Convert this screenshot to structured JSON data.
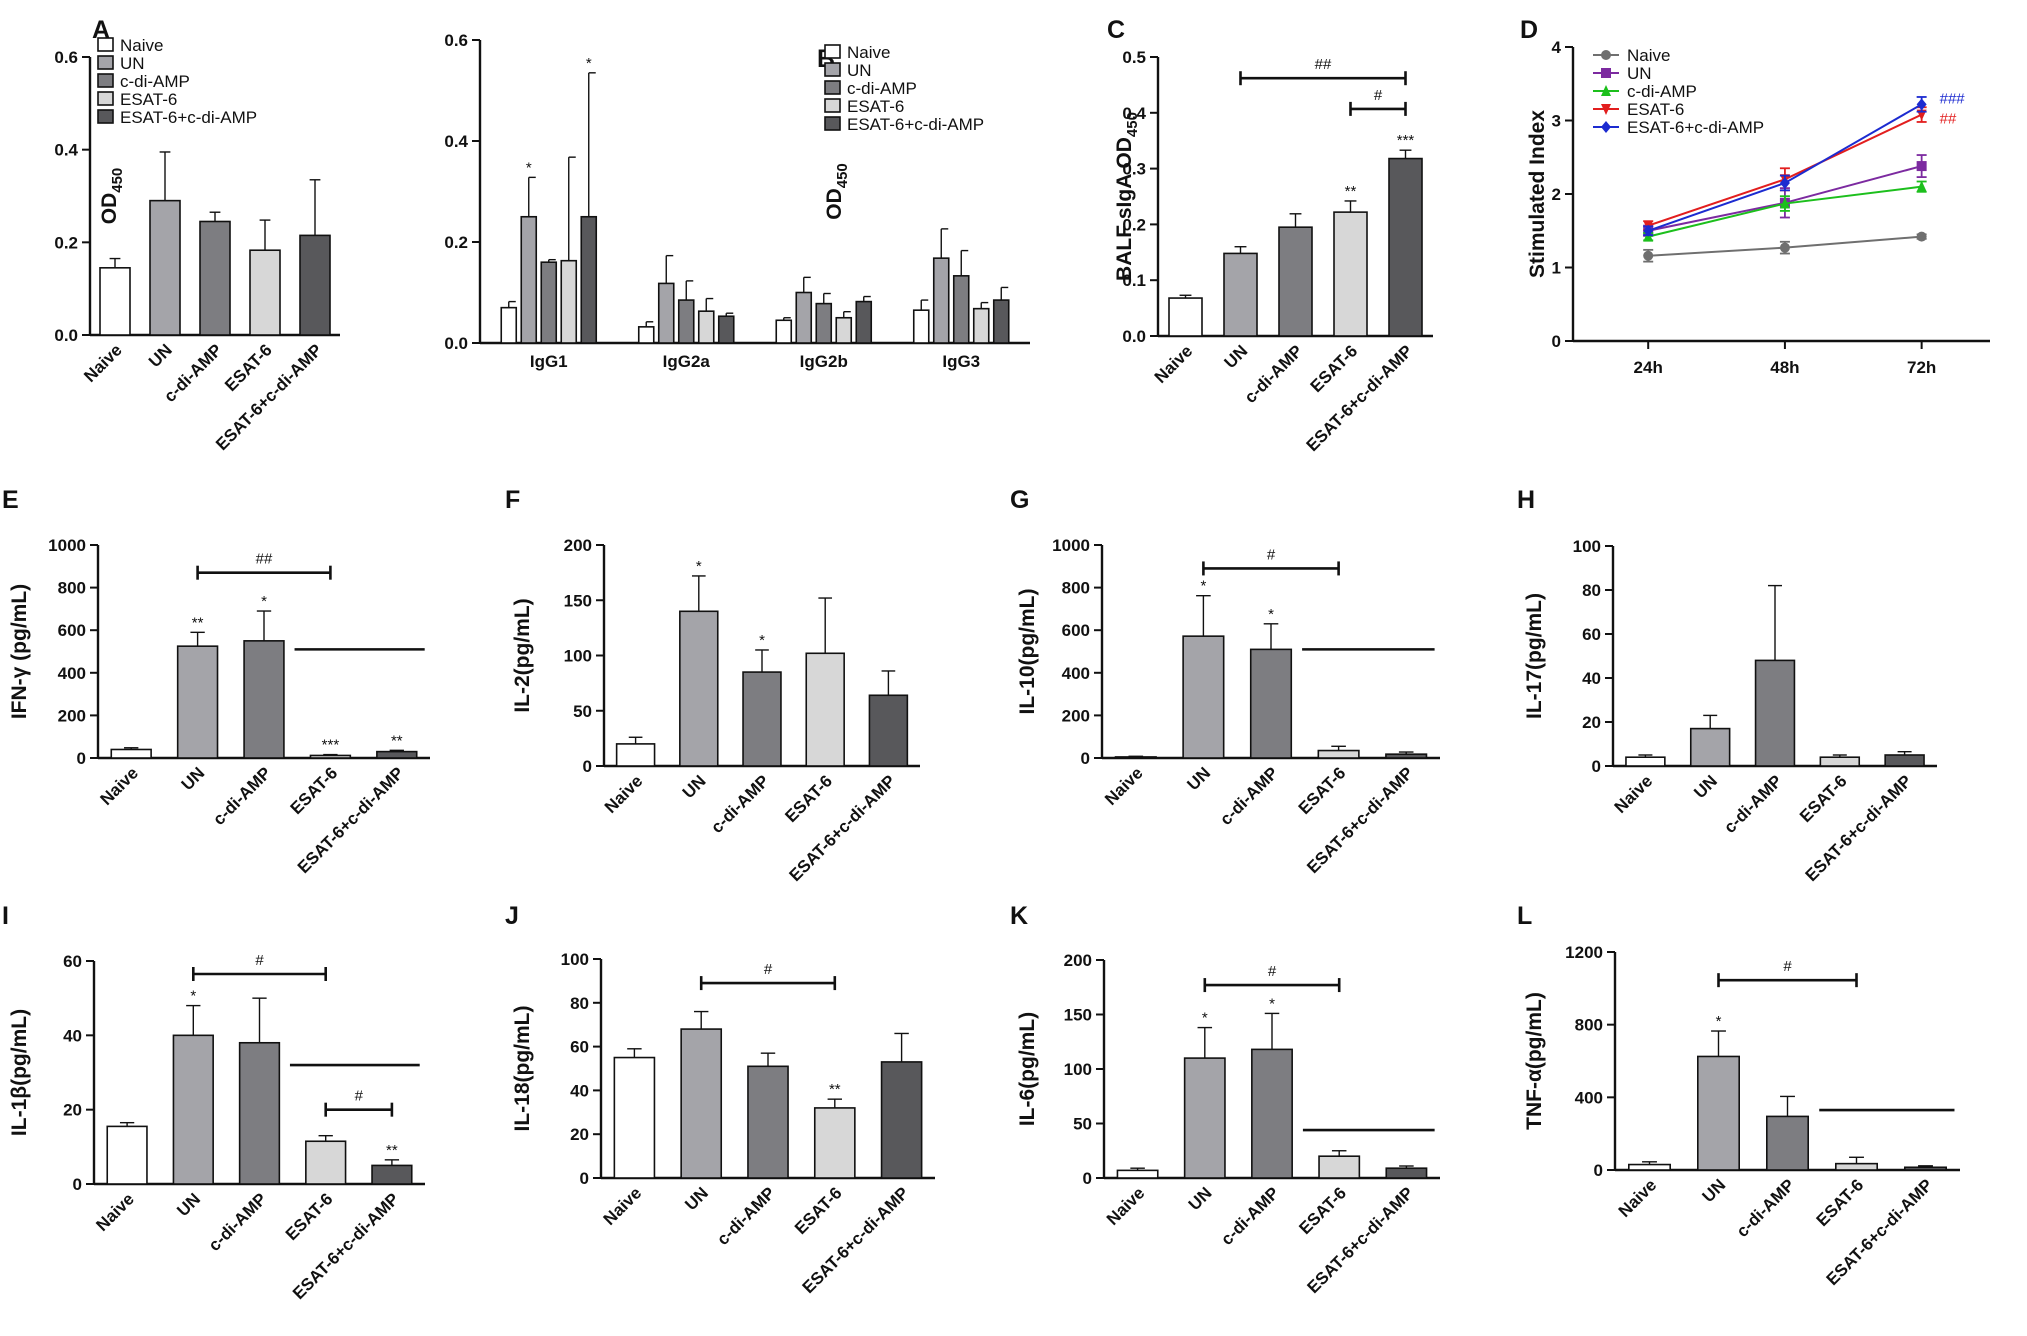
{
  "colors": {
    "Naive": "#ffffff",
    "UN": "#a4a4a9",
    "c-di-AMP": "#7d7d81",
    "ESAT-6": "#d7d7d7",
    "ESAT-6+c-di-AMP": "#58585b"
  },
  "chart_data": [
    {
      "panel": "A",
      "type": "bar",
      "ylabel": "OD",
      "ylabel_sub": "450",
      "ylim": [
        0,
        0.6
      ],
      "yticks": [
        "0.0",
        "0.2",
        "0.4",
        "0.6"
      ],
      "categories": [
        "Naive",
        "UN",
        "c-di-AMP",
        "ESAT-6",
        "ESAT-6+c-di-AMP"
      ],
      "values": [
        0.145,
        0.29,
        0.245,
        0.183,
        0.215
      ],
      "errors": [
        0.02,
        0.105,
        0.02,
        0.065,
        0.12
      ],
      "stars": [
        "",
        "",
        "",
        "",
        ""
      ],
      "legend": [
        "Naive",
        "UN",
        "c-di-AMP",
        "ESAT-6",
        "ESAT-6+c-di-AMP"
      ],
      "brackets": [],
      "lines": []
    },
    {
      "panel": "B",
      "type": "bar",
      "ylabel": "OD",
      "ylabel_sub": "450",
      "ylim": [
        0,
        0.6
      ],
      "yticks": [
        "0.0",
        "0.2",
        "0.4",
        "0.6"
      ],
      "categories": [
        "IgG1",
        "IgG2a",
        "IgG2b",
        "IgG3"
      ],
      "series": [
        {
          "name": "Naive",
          "values": [
            0.07,
            0.032,
            0.045,
            0.065
          ],
          "errors": [
            0.012,
            0.01,
            0.005,
            0.02
          ],
          "stars": [
            "",
            "",
            "",
            ""
          ]
        },
        {
          "name": "UN",
          "values": [
            0.25,
            0.118,
            0.1,
            0.168
          ],
          "errors": [
            0.078,
            0.055,
            0.03,
            0.058
          ],
          "stars": [
            "*",
            "",
            "",
            ""
          ]
        },
        {
          "name": "c-di-AMP",
          "values": [
            0.16,
            0.085,
            0.078,
            0.133
          ],
          "errors": [
            0.005,
            0.038,
            0.02,
            0.05
          ],
          "stars": [
            "",
            "",
            "",
            ""
          ]
        },
        {
          "name": "ESAT-6",
          "values": [
            0.163,
            0.063,
            0.05,
            0.068
          ],
          "errors": [
            0.205,
            0.025,
            0.012,
            0.012
          ],
          "stars": [
            "",
            "",
            "",
            ""
          ]
        },
        {
          "name": "ESAT-6+c-di-AMP",
          "values": [
            0.25,
            0.053,
            0.082,
            0.085
          ],
          "errors": [
            0.285,
            0.006,
            0.01,
            0.025
          ],
          "stars": [
            "*",
            "",
            "",
            ""
          ]
        }
      ],
      "legend": [
        "Naive",
        "UN",
        "c-di-AMP",
        "ESAT-6",
        "ESAT-6+c-di-AMP"
      ]
    },
    {
      "panel": "C",
      "type": "bar",
      "ylabel": "BALF sIgA OD",
      "ylabel_sub": "450",
      "ylim": [
        0,
        0.5
      ],
      "yticks": [
        "0.0",
        "0.1",
        "0.2",
        "0.3",
        "0.4",
        "0.5"
      ],
      "categories": [
        "Naive",
        "UN",
        "c-di-AMP",
        "ESAT-6",
        "ESAT-6+c-di-AMP"
      ],
      "values": [
        0.068,
        0.148,
        0.195,
        0.222,
        0.318
      ],
      "errors": [
        0.005,
        0.012,
        0.024,
        0.02,
        0.015
      ],
      "stars": [
        "",
        "",
        "",
        "**",
        "***"
      ],
      "brackets": [
        {
          "from": 1,
          "to": 4,
          "y": 0.462,
          "label": "##"
        },
        {
          "from": 3,
          "to": 4,
          "y": 0.407,
          "label": "#"
        }
      ],
      "lines": []
    },
    {
      "panel": "D",
      "type": "line",
      "ylabel": "Stimulated Index",
      "ylim": [
        0,
        4
      ],
      "yticks": [
        "0",
        "1",
        "2",
        "3",
        "4"
      ],
      "x": [
        "24h",
        "48h",
        "72h"
      ],
      "series": [
        {
          "name": "Naive",
          "color": "#6f6f6f",
          "marker": "circle",
          "values": [
            1.16,
            1.27,
            1.42
          ],
          "errors": [
            0.08,
            0.08,
            0.03
          ]
        },
        {
          "name": "UN",
          "color": "#7c2aa0",
          "marker": "square",
          "values": [
            1.5,
            1.88,
            2.38
          ],
          "errors": [
            0.07,
            0.2,
            0.15
          ]
        },
        {
          "name": "c-di-AMP",
          "color": "#1cbf1c",
          "marker": "triangle-up",
          "values": [
            1.42,
            1.87,
            2.1
          ],
          "errors": [
            0.05,
            0.1,
            0.07
          ]
        },
        {
          "name": "ESAT-6",
          "color": "#e21e1e",
          "marker": "triangle-down",
          "values": [
            1.57,
            2.2,
            3.08
          ],
          "errors": [
            0.06,
            0.15,
            0.1
          ]
        },
        {
          "name": "ESAT-6+c-di-AMP",
          "color": "#1c2bd0",
          "marker": "diamond",
          "values": [
            1.5,
            2.15,
            3.22
          ],
          "errors": [
            0.06,
            0.1,
            0.1
          ]
        }
      ],
      "annotations": [
        {
          "text": "###",
          "color": "#1c2bd0",
          "y": 3.3
        },
        {
          "text": "##",
          "color": "#e21e1e",
          "y": 3.03
        }
      ],
      "legend": [
        "Naive",
        "UN",
        "c-di-AMP",
        "ESAT-6",
        "ESAT-6+c-di-AMP"
      ]
    },
    {
      "panel": "E",
      "type": "bar",
      "ylabel": "IFN-γ (pg/mL)",
      "ylim": [
        0,
        1000
      ],
      "yticks": [
        "0",
        "200",
        "400",
        "600",
        "800",
        "1000"
      ],
      "categories": [
        "Naive",
        "UN",
        "c-di-AMP",
        "ESAT-6",
        "ESAT-6+c-di-AMP"
      ],
      "values": [
        40,
        525,
        550,
        12,
        30
      ],
      "errors": [
        8,
        65,
        140,
        4,
        6
      ],
      "stars": [
        "",
        "**",
        "*",
        "***",
        "**"
      ],
      "brackets": [
        {
          "from": 1,
          "to": 3,
          "y": 870,
          "label": "##"
        }
      ],
      "lines": [
        {
          "from": 3,
          "to": 4,
          "y": 510
        }
      ]
    },
    {
      "panel": "F",
      "type": "bar",
      "ylabel": "IL-2(pg/mL)",
      "ylim": [
        0,
        200
      ],
      "yticks": [
        "0",
        "50",
        "100",
        "150",
        "200"
      ],
      "categories": [
        "Naive",
        "UN",
        "c-di-AMP",
        "ESAT-6",
        "ESAT-6+c-di-AMP"
      ],
      "values": [
        20,
        140,
        85,
        102,
        64
      ],
      "errors": [
        6,
        32,
        20,
        50,
        22
      ],
      "stars": [
        "",
        "*",
        "*",
        "",
        ""
      ],
      "brackets": [],
      "lines": []
    },
    {
      "panel": "G",
      "type": "bar",
      "ylabel": "IL-10(pg/mL)",
      "ylim": [
        0,
        1000
      ],
      "yticks": [
        "0",
        "200",
        "400",
        "600",
        "800",
        "1000"
      ],
      "categories": [
        "Naive",
        "UN",
        "c-di-AMP",
        "ESAT-6",
        "ESAT-6+c-di-AMP"
      ],
      "values": [
        5,
        572,
        510,
        35,
        18
      ],
      "errors": [
        3,
        190,
        120,
        20,
        10
      ],
      "stars": [
        "",
        "*",
        "*",
        "",
        ""
      ],
      "brackets": [
        {
          "from": 1,
          "to": 3,
          "y": 890,
          "label": "#"
        }
      ],
      "lines": [
        {
          "from": 3,
          "to": 4,
          "y": 510
        }
      ]
    },
    {
      "panel": "H",
      "type": "bar",
      "ylabel": "IL-17(pg/mL)",
      "ylim": [
        0,
        100
      ],
      "yticks": [
        "0",
        "20",
        "40",
        "60",
        "80",
        "100"
      ],
      "categories": [
        "Naive",
        "UN",
        "c-di-AMP",
        "ESAT-6",
        "ESAT-6+c-di-AMP"
      ],
      "values": [
        4,
        17,
        48,
        4,
        5
      ],
      "errors": [
        1,
        6,
        34,
        1,
        1.5
      ],
      "stars": [
        "",
        "",
        "",
        "",
        ""
      ],
      "brackets": [],
      "lines": []
    },
    {
      "panel": "I",
      "type": "bar",
      "ylabel": "IL-1β(pg/mL)",
      "ylim": [
        0,
        60
      ],
      "yticks": [
        "0",
        "20",
        "40",
        "60"
      ],
      "categories": [
        "Naive",
        "UN",
        "c-di-AMP",
        "ESAT-6",
        "ESAT-6+c-di-AMP"
      ],
      "values": [
        15.5,
        40,
        38,
        11.5,
        5
      ],
      "errors": [
        1,
        8,
        12,
        1.5,
        1.5
      ],
      "stars": [
        "",
        "*",
        "",
        "",
        "**"
      ],
      "brackets": [
        {
          "from": 1,
          "to": 3,
          "y": 56.5,
          "label": "#"
        },
        {
          "from": 3,
          "to": 4,
          "y": 20,
          "label": "#"
        }
      ],
      "lines": [
        {
          "from": 3,
          "to": 4,
          "y": 32
        }
      ]
    },
    {
      "panel": "J",
      "type": "bar",
      "ylabel": "IL-18(pg/mL)",
      "ylim": [
        0,
        100
      ],
      "yticks": [
        "0",
        "20",
        "40",
        "60",
        "80",
        "100"
      ],
      "categories": [
        "Naive",
        "UN",
        "c-di-AMP",
        "ESAT-6",
        "ESAT-6+c-di-AMP"
      ],
      "values": [
        55,
        68,
        51,
        32,
        53
      ],
      "errors": [
        4,
        8,
        6,
        4,
        13
      ],
      "stars": [
        "",
        "",
        "",
        "**",
        ""
      ],
      "brackets": [
        {
          "from": 1,
          "to": 3,
          "y": 89,
          "label": "#"
        }
      ],
      "lines": []
    },
    {
      "panel": "K",
      "type": "bar",
      "ylabel": "IL-6(pg/mL)",
      "ylim": [
        0,
        200
      ],
      "yticks": [
        "0",
        "50",
        "100",
        "150",
        "200"
      ],
      "categories": [
        "Naive",
        "UN",
        "c-di-AMP",
        "ESAT-6",
        "ESAT-6+c-di-AMP"
      ],
      "values": [
        7,
        110,
        118,
        20,
        9
      ],
      "errors": [
        2,
        28,
        33,
        5,
        2
      ],
      "stars": [
        "",
        "*",
        "*",
        "",
        ""
      ],
      "brackets": [
        {
          "from": 1,
          "to": 3,
          "y": 177,
          "label": "#"
        }
      ],
      "lines": [
        {
          "from": 3,
          "to": 4,
          "y": 44
        }
      ]
    },
    {
      "panel": "L",
      "type": "bar",
      "ylabel": "TNF-α(pg/mL)",
      "ylim": [
        0,
        1200
      ],
      "yticks": [
        "0",
        "400",
        "800",
        "1200"
      ],
      "categories": [
        "Naive",
        "UN",
        "c-di-AMP",
        "ESAT-6",
        "ESAT-6+c-di-AMP"
      ],
      "values": [
        30,
        625,
        295,
        35,
        15
      ],
      "errors": [
        15,
        140,
        110,
        35,
        8
      ],
      "stars": [
        "",
        "*",
        "",
        "",
        ""
      ],
      "brackets": [
        {
          "from": 1,
          "to": 3,
          "y": 1045,
          "label": "#"
        }
      ],
      "lines": [
        {
          "from": 3,
          "to": 4,
          "y": 330
        }
      ]
    }
  ]
}
